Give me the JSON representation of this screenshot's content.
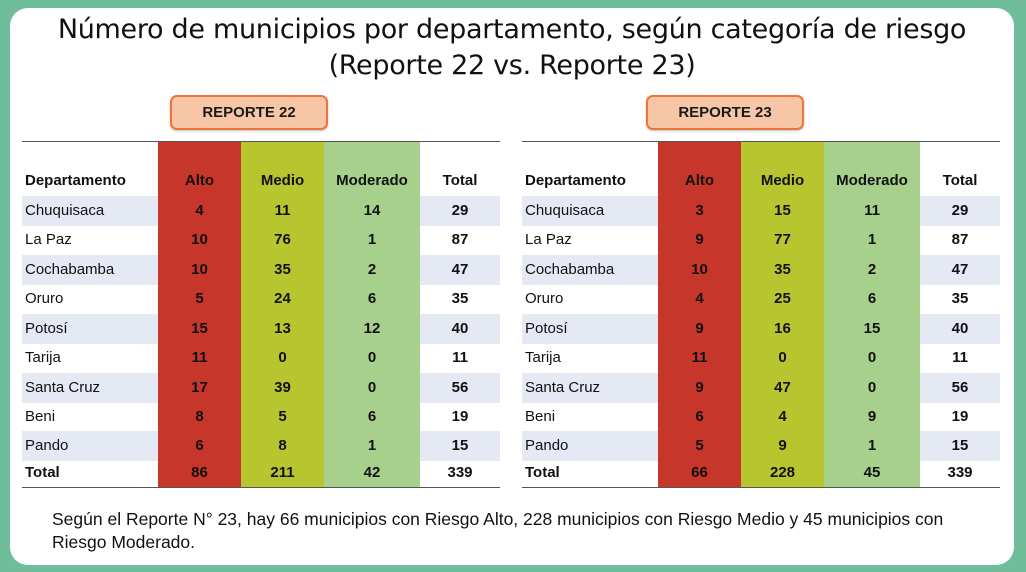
{
  "title_line1": "Número de municipios por departamento, según categoría de riesgo",
  "title_line2": "(Reporte 22 vs. Reporte 23)",
  "headers": [
    "Departamento",
    "Alto",
    "Medio",
    "Moderado",
    "Total"
  ],
  "tables": [
    {
      "label": "REPORTE 22",
      "rows": [
        [
          "Chuquisaca",
          "4",
          "11",
          "14",
          "29"
        ],
        [
          "La Paz",
          "10",
          "76",
          "1",
          "87"
        ],
        [
          "Cochabamba",
          "10",
          "35",
          "2",
          "47"
        ],
        [
          "Oruro",
          "5",
          "24",
          "6",
          "35"
        ],
        [
          "Potosí",
          "15",
          "13",
          "12",
          "40"
        ],
        [
          "Tarija",
          "11",
          "0",
          "0",
          "11"
        ],
        [
          "Santa Cruz",
          "17",
          "39",
          "0",
          "56"
        ],
        [
          "Beni",
          "8",
          "5",
          "6",
          "19"
        ],
        [
          "Pando",
          "6",
          "8",
          "1",
          "15"
        ]
      ],
      "total": [
        "Total",
        "86",
        "211",
        "42",
        "339"
      ]
    },
    {
      "label": "REPORTE 23",
      "rows": [
        [
          "Chuquisaca",
          "3",
          "15",
          "11",
          "29"
        ],
        [
          "La Paz",
          "9",
          "77",
          "1",
          "87"
        ],
        [
          "Cochabamba",
          "10",
          "35",
          "2",
          "47"
        ],
        [
          "Oruro",
          "4",
          "25",
          "6",
          "35"
        ],
        [
          "Potosí",
          "9",
          "16",
          "15",
          "40"
        ],
        [
          "Tarija",
          "11",
          "0",
          "0",
          "11"
        ],
        [
          "Santa Cruz",
          "9",
          "47",
          "0",
          "56"
        ],
        [
          "Beni",
          "6",
          "4",
          "9",
          "19"
        ],
        [
          "Pando",
          "5",
          "9",
          "1",
          "15"
        ]
      ],
      "total": [
        "Total",
        "66",
        "228",
        "45",
        "339"
      ]
    }
  ],
  "note": "Según el Reporte N° 23, hay 66 municipios con Riesgo Alto, 228 municipios con Riesgo Medio y 45 municipios con Riesgo Moderado.",
  "colors": {
    "alto": "#c7362b",
    "medio": "#b7c52f",
    "moderado": "#a7d08c",
    "label_bg": "#f7c6a7",
    "label_border": "#e9773a",
    "frame": "#6fbd9b"
  }
}
